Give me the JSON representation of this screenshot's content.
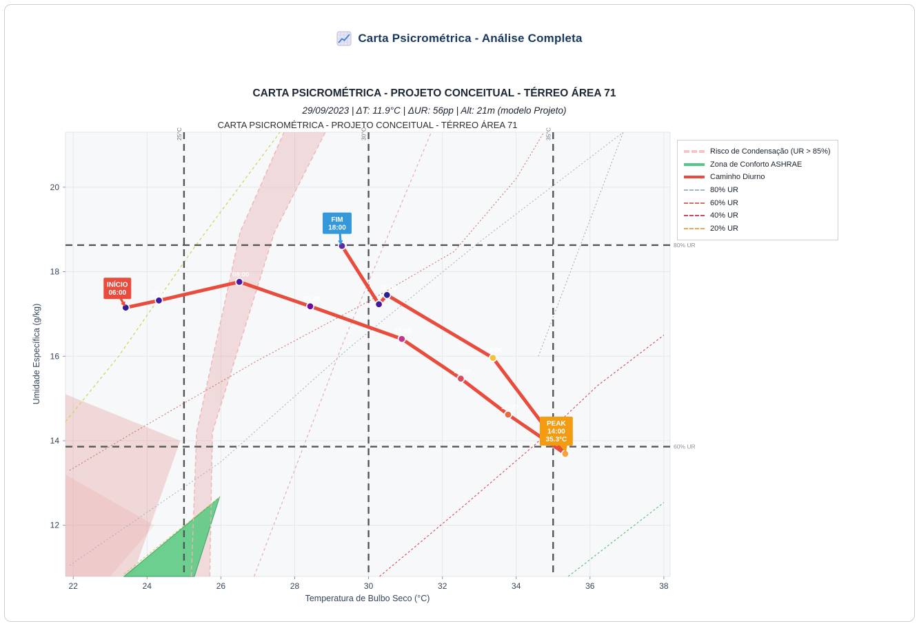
{
  "window": {
    "title": "Carta Psicrométrica - Análise Completa",
    "title_icon": "chart-increasing"
  },
  "figure": {
    "title": "CARTA PSICROMÉTRICA - PROJETO CONCEITUAL - TÉRREO ÁREA 71",
    "subtitle": "29/09/2023 | ΔT: 11.9°C | ΔUR: 56pp | Alt: 21m (modelo Projeto)",
    "inner_title": "CARTA PSICROMÉTRICA - PROJETO CONCEITUAL - TÉRREO ÁREA 71"
  },
  "chart_data": {
    "type": "scatter",
    "xlabel": "Temperatura de Bulbo Seco (°C)",
    "ylabel": "Umidade Específica (g/kg)",
    "xlim": [
      21.79,
      38.17
    ],
    "ylim": [
      10.79,
      21.3
    ],
    "x_ticks": [
      22,
      24,
      26,
      28,
      30,
      32,
      34,
      36,
      38
    ],
    "y_ticks": [
      12,
      14,
      16,
      18,
      20
    ],
    "grid": true,
    "series": [
      {
        "name": "Caminho Diurno",
        "color": "#e74c3c",
        "points": [
          {
            "t": 23.42,
            "w": 17.15,
            "hour": "06:00",
            "color": "#2d1d96",
            "show_label": false
          },
          {
            "t": 24.32,
            "w": 17.32,
            "hour": "07:00",
            "color": "#3b1c9e",
            "show_label": true
          },
          {
            "t": 26.5,
            "w": 17.76,
            "hour": "08:00",
            "color": "#52169e",
            "show_label": true
          },
          {
            "t": 28.42,
            "w": 17.18,
            "hour": "09:00",
            "color": "#6f0ba3",
            "show_label": true
          },
          {
            "t": 30.9,
            "w": 16.41,
            "hour": "11:00",
            "color": "#c2388f",
            "show_label": true
          },
          {
            "t": 32.5,
            "w": 15.47,
            "hour": "12:00",
            "color": "#d94a63",
            "show_label": true
          },
          {
            "t": 33.78,
            "w": 14.62,
            "hour": "13:00",
            "color": "#e8683f",
            "show_label": true
          },
          {
            "t": 35.33,
            "w": 13.69,
            "hour": "14:00",
            "color": "#f4a33b",
            "show_label": false
          },
          {
            "t": 33.37,
            "w": 15.96,
            "hour": "15:00",
            "color": "#f2c13d",
            "show_label": true
          },
          {
            "t": 30.5,
            "w": 17.45,
            "hour": "16:00",
            "color": "#2f1f90",
            "show_label": true
          },
          {
            "t": 30.28,
            "w": 17.23,
            "hour": "17:00",
            "color": "#45189a",
            "show_label": false
          },
          {
            "t": 29.28,
            "w": 18.61,
            "hour": "18:00",
            "color": "#5c2ba3",
            "show_label": false
          }
        ]
      }
    ],
    "ref_lines_h": [
      {
        "value": 18.63,
        "label": "80% UR"
      },
      {
        "value": 13.86,
        "label": "60% UR"
      }
    ],
    "ref_lines_v": [
      {
        "value": 25,
        "label": "25°C"
      },
      {
        "value": 30,
        "label": "30°C"
      },
      {
        "value": 35,
        "label": "35°C"
      }
    ],
    "ur_lines": [
      {
        "name": "85%-band-left",
        "color": "#f0b4b4",
        "width": 1.4,
        "dash": "6,4",
        "points": [
          [
            25.2,
            10.79
          ],
          [
            25.34,
            14.2
          ],
          [
            26.52,
            18.93
          ],
          [
            27.71,
            21.3
          ]
        ]
      },
      {
        "name": "85%-band-right",
        "color": "#f0b4b4",
        "width": 1.4,
        "dash": "6,4",
        "points": [
          [
            25.7,
            10.79
          ],
          [
            25.77,
            14.2
          ],
          [
            27.45,
            18.93
          ],
          [
            28.83,
            21.3
          ]
        ]
      },
      {
        "name": "pink-mid",
        "color": "#e8a8bc",
        "width": 1.2,
        "dash": "4,4",
        "points": [
          [
            26.9,
            10.79
          ],
          [
            29.3,
            16.3
          ],
          [
            31.7,
            21.3
          ]
        ]
      },
      {
        "name": "90%-yellow-green",
        "color": "#cdd24a",
        "width": 1.2,
        "dash": "4,4",
        "points": [
          [
            21.79,
            14.45
          ],
          [
            23.23,
            16.0
          ],
          [
            25.3,
            18.6
          ],
          [
            27.6,
            21.3
          ]
        ]
      },
      {
        "name": "80%-ur",
        "color": "#a3b2c6",
        "width": 1.1,
        "dash": "2,3",
        "points": [
          [
            21.9,
            11.05
          ],
          [
            26.0,
            13.5
          ],
          [
            29.48,
            16.2
          ],
          [
            33.0,
            18.7
          ],
          [
            36.9,
            21.3
          ]
        ]
      },
      {
        "name": "80%-ur-right",
        "color": "#a9a3cc",
        "width": 1.1,
        "dash": "2,3",
        "points": [
          [
            34.6,
            16.0
          ],
          [
            36.9,
            21.3
          ]
        ]
      },
      {
        "name": "60%-ur",
        "color": "#cf7265",
        "width": 1.1,
        "dash": "2,3",
        "points": [
          [
            21.9,
            13.3
          ],
          [
            23.66,
            14.21
          ],
          [
            27.0,
            15.9
          ],
          [
            30.0,
            17.3
          ],
          [
            32.32,
            18.48
          ],
          [
            34.0,
            20.2
          ],
          [
            34.75,
            21.3
          ]
        ]
      },
      {
        "name": "40%-ur",
        "color": "#d64550",
        "width": 1.1,
        "dash": "3,3",
        "points": [
          [
            30.3,
            10.79
          ],
          [
            32.5,
            12.4
          ],
          [
            34.5,
            13.9
          ],
          [
            36.2,
            15.3
          ],
          [
            38.0,
            16.5
          ]
        ]
      },
      {
        "name": "green-bottom",
        "color": "#58b873",
        "width": 1.1,
        "dash": "3,3",
        "points": [
          [
            35.41,
            10.79
          ],
          [
            38.0,
            12.54
          ]
        ]
      },
      {
        "name": "comfort-edge",
        "color": "#c9cf52",
        "width": 1.2,
        "dash": "3,3",
        "points": [
          [
            23.38,
            10.85
          ],
          [
            25.96,
            12.66
          ]
        ]
      }
    ],
    "zones": {
      "condensation": [
        {
          "points": [
            [
              25.2,
              10.79
            ],
            [
              25.34,
              14.2
            ],
            [
              26.52,
              18.93
            ],
            [
              27.71,
              21.3
            ],
            [
              28.83,
              21.3
            ],
            [
              27.45,
              18.93
            ],
            [
              25.77,
              14.2
            ],
            [
              25.7,
              10.79
            ]
          ],
          "fill": "#e08080",
          "opacity": 0.25
        },
        {
          "points": [
            [
              21.79,
              15.1
            ],
            [
              24.9,
              14.0
            ],
            [
              23.6,
              10.79
            ],
            [
              21.79,
              10.79
            ]
          ],
          "fill": "#e08080",
          "opacity": 0.28
        },
        {
          "points": [
            [
              21.79,
              13.2
            ],
            [
              24.2,
              12.0
            ],
            [
              23.0,
              10.79
            ],
            [
              21.79,
              10.79
            ]
          ],
          "fill": "#e08080",
          "opacity": 0.14
        }
      ],
      "comfort": {
        "points": [
          [
            23.38,
            10.79
          ],
          [
            25.96,
            12.66
          ],
          [
            25.28,
            10.79
          ]
        ],
        "fill": "#5ecb85",
        "stroke": "#35a45f",
        "opacity": 0.9
      }
    },
    "annotations": [
      {
        "id": "inicio",
        "lines": [
          "INÍCIO",
          "06:00"
        ],
        "color": "#e74c3c",
        "point": [
          23.42,
          17.15
        ],
        "box_offset": [
          -12,
          -28
        ],
        "box_size": [
          40,
          31
        ],
        "pointer": false
      },
      {
        "id": "fim",
        "lines": [
          "FIM",
          "18:00"
        ],
        "color": "#3498db",
        "point": [
          29.28,
          18.61
        ],
        "box_offset": [
          -7,
          -33
        ],
        "box_size": [
          42,
          31
        ],
        "pointer": false
      },
      {
        "id": "peak",
        "lines": [
          "PEAK",
          "14:00",
          "35.3°C"
        ],
        "color": "#f39c12",
        "point": [
          35.33,
          13.69
        ],
        "box_offset": [
          -13,
          -33
        ],
        "box_size": [
          48,
          42
        ],
        "pointer": true
      }
    ]
  },
  "legend": {
    "items": [
      {
        "label": "Risco de Condensação (UR > 85%)",
        "swatch": "thick-dash",
        "color": "#f2c6c6"
      },
      {
        "label": "Zona de Conforto ASHRAE",
        "swatch": "thick-solid",
        "color": "#52c788"
      },
      {
        "label": "Caminho Diurno",
        "swatch": "thick-solid",
        "color": "#e74c3c"
      },
      {
        "label": "80% UR",
        "swatch": "thin-dash",
        "color": "#a3b2c6"
      },
      {
        "label": "60% UR",
        "swatch": "thin-dash",
        "color": "#cf7265"
      },
      {
        "label": "40% UR",
        "swatch": "thin-dash",
        "color": "#d64550"
      },
      {
        "label": "20% UR",
        "swatch": "thin-dash",
        "color": "#eaa94e"
      }
    ]
  }
}
